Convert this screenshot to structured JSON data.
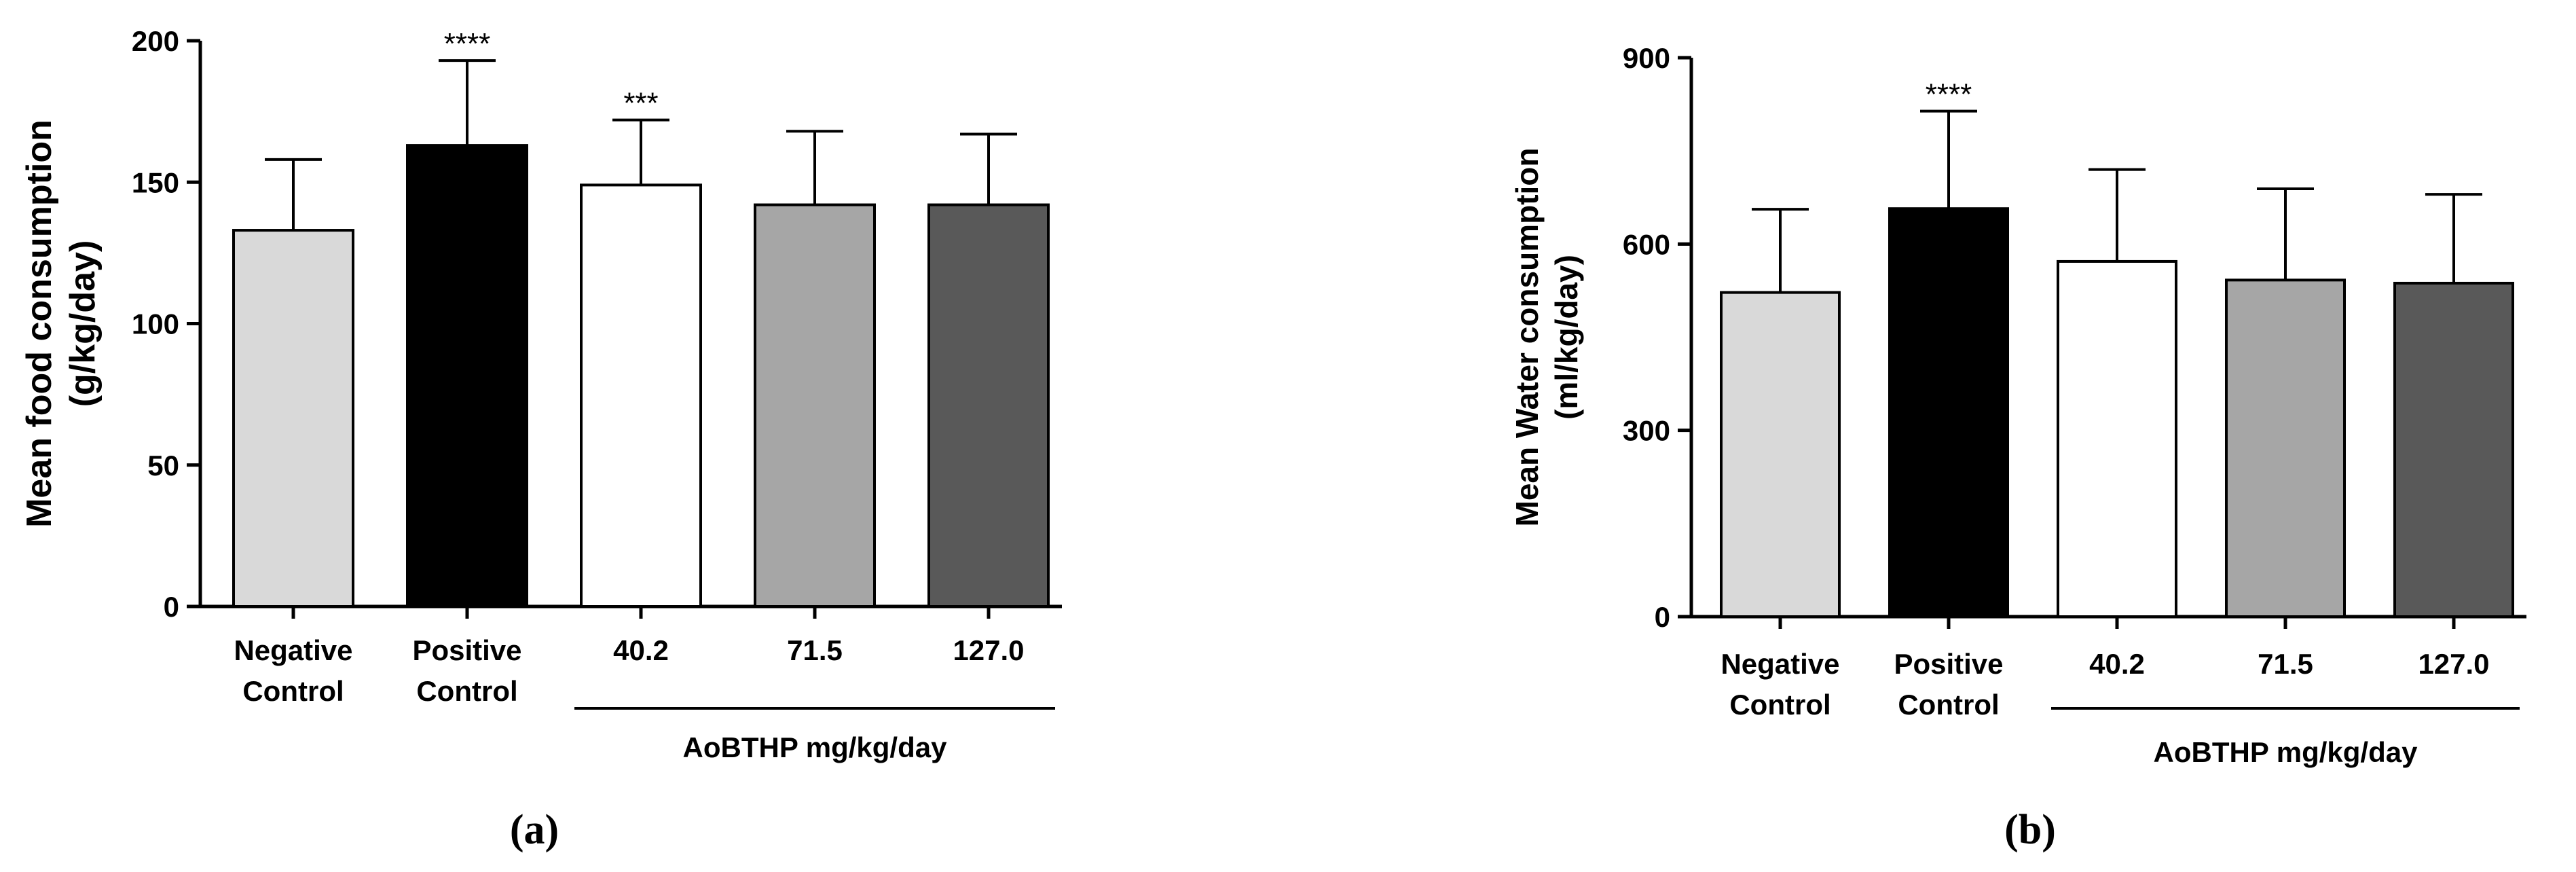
{
  "chart_data": [
    {
      "type": "bar",
      "panel_label": "(a)",
      "ylabel": "Mean food consumption (g/kg/day)",
      "ylabel_lines": [
        "Mean food consumption",
        "(g/kg/day)"
      ],
      "ylim": [
        0,
        200
      ],
      "yticks": [
        0,
        50,
        100,
        150,
        200
      ],
      "categories": [
        {
          "lines": [
            "Negative",
            "Control"
          ]
        },
        {
          "lines": [
            "Positive",
            "Control"
          ]
        },
        {
          "lines": [
            "40.2"
          ]
        },
        {
          "lines": [
            "71.5"
          ]
        },
        {
          "lines": [
            "127.0"
          ]
        }
      ],
      "values": [
        133,
        163,
        149,
        142,
        142
      ],
      "error": [
        25,
        30,
        23,
        26,
        25
      ],
      "significance": [
        "",
        "****",
        "***",
        "",
        ""
      ],
      "group_label": "AoBTHP mg/kg/day",
      "group_span": [
        2,
        4
      ],
      "colors": [
        "#d9d9d9",
        "#000000",
        "#ffffff",
        "#a6a6a6",
        "#595959"
      ]
    },
    {
      "type": "bar",
      "panel_label": "(b)",
      "ylabel": "Mean Water consumption (ml/kg/day)",
      "ylabel_lines": [
        "Mean Water consumption",
        "(ml/kg/day)"
      ],
      "ylim": [
        0,
        900
      ],
      "yticks": [
        0,
        300,
        600,
        900
      ],
      "categories": [
        {
          "lines": [
            "Negative",
            "Control"
          ]
        },
        {
          "lines": [
            "Positive",
            "Control"
          ]
        },
        {
          "lines": [
            "40.2"
          ]
        },
        {
          "lines": [
            "71.5"
          ]
        },
        {
          "lines": [
            "127.0"
          ]
        }
      ],
      "values": [
        522,
        657,
        572,
        542,
        537
      ],
      "error": [
        134,
        157,
        148,
        147,
        143
      ],
      "significance": [
        "",
        "****",
        "",
        "",
        ""
      ],
      "group_label": "AoBTHP mg/kg/day",
      "group_span": [
        2,
        4
      ],
      "colors": [
        "#d9d9d9",
        "#000000",
        "#ffffff",
        "#a6a6a6",
        "#595959"
      ]
    }
  ]
}
